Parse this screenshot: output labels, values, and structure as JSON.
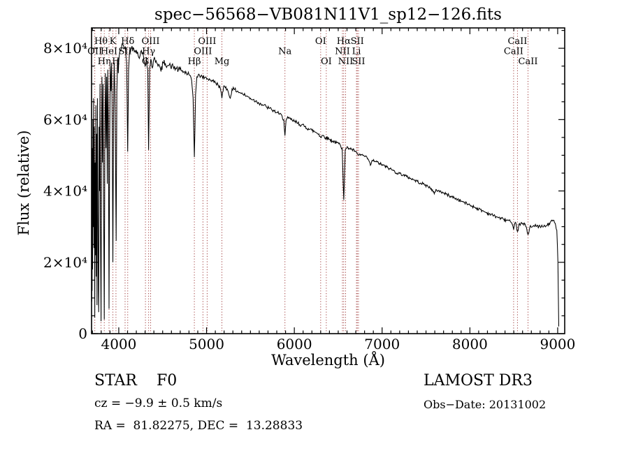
{
  "title": "spec−56568−VB081N11V1_sp12−126.fits",
  "annotations": {
    "object_class": "STAR    F0",
    "cz": "cz = −9.9 ± 0.5 km/s",
    "radec": "RA =  81.82275, DEC =  13.28833",
    "survey": "LAMOST DR3",
    "obs_date": "Obs−Date: 20131002"
  },
  "colors": {
    "background": "#ffffff",
    "axes": "#000000",
    "spectrum": "#000000",
    "line_marker": "#a03c3c",
    "text": "#000000"
  },
  "chart_data": {
    "type": "line",
    "title": "spec−56568−VB081N11V1_sp12−126.fits",
    "xlabel": "Wavelength (Å)",
    "ylabel": "Flux (relative)",
    "xlim": [
      3690,
      9080
    ],
    "ylim": [
      0,
      85700
    ],
    "grid": false,
    "legend": "none",
    "x_ticks": [
      {
        "value": 4000,
        "label": "4000"
      },
      {
        "value": 5000,
        "label": "5000"
      },
      {
        "value": 6000,
        "label": "6000"
      },
      {
        "value": 7000,
        "label": "7000"
      },
      {
        "value": 8000,
        "label": "8000"
      },
      {
        "value": 9000,
        "label": "9000"
      }
    ],
    "x_minor_step": 100,
    "y_ticks": [
      {
        "value": 0,
        "label": "0"
      },
      {
        "value": 20000,
        "label": "2×10⁴"
      },
      {
        "value": 40000,
        "label": "4×10⁴"
      },
      {
        "value": 60000,
        "label": "6×10⁴"
      },
      {
        "value": 80000,
        "label": "8×10⁴"
      }
    ],
    "y_minor_step": 5000,
    "spectral_lines": [
      {
        "wavelength": 3727,
        "label": "OII",
        "row": 2
      },
      {
        "wavelength": 3798,
        "label": "Hθ",
        "row": 1
      },
      {
        "wavelength": 3835,
        "label": "Hη",
        "row": 3
      },
      {
        "wavelength": 3889,
        "label": "HeI",
        "row": 2
      },
      {
        "wavelength": 3933,
        "label": "K",
        "row": 1
      },
      {
        "wavelength": 3968,
        "label": "H",
        "row": 3
      },
      {
        "wavelength": 4072,
        "label": "SII",
        "row": 2
      },
      {
        "wavelength": 4102,
        "label": "Hδ",
        "row": 1
      },
      {
        "wavelength": 4304,
        "label": "G",
        "row": 3
      },
      {
        "wavelength": 4340,
        "label": "Hγ",
        "row": 2
      },
      {
        "wavelength": 4363,
        "label": "OIII",
        "row": 1
      },
      {
        "wavelength": 4861,
        "label": "Hβ",
        "row": 3
      },
      {
        "wavelength": 4959,
        "label": "OIII",
        "row": 2
      },
      {
        "wavelength": 5007,
        "label": "OIII",
        "row": 1
      },
      {
        "wavelength": 5175,
        "label": "Mg",
        "row": 3
      },
      {
        "wavelength": 5893,
        "label": "Na",
        "row": 2
      },
      {
        "wavelength": 6300,
        "label": "OI",
        "row": 1
      },
      {
        "wavelength": 6364,
        "label": "OI",
        "row": 3
      },
      {
        "wavelength": 6548,
        "label": "NII",
        "row": 2
      },
      {
        "wavelength": 6563,
        "label": "Hα",
        "row": 1
      },
      {
        "wavelength": 6584,
        "label": "NII",
        "row": 3
      },
      {
        "wavelength": 6708,
        "label": "Li",
        "row": 2
      },
      {
        "wavelength": 6717,
        "label": "SII",
        "row": 1
      },
      {
        "wavelength": 6731,
        "label": "SII",
        "row": 3
      },
      {
        "wavelength": 8498,
        "label": "CaII",
        "row": 2
      },
      {
        "wavelength": 8542,
        "label": "CaII",
        "row": 1
      },
      {
        "wavelength": 8662,
        "label": "CaII",
        "row": 3
      }
    ],
    "series": [
      {
        "name": "spectrum",
        "color": "#000000",
        "points": [
          [
            3692,
            9000
          ],
          [
            3694,
            38000
          ],
          [
            3696,
            12000
          ],
          [
            3699,
            52000
          ],
          [
            3702,
            18000
          ],
          [
            3705,
            60000
          ],
          [
            3709,
            30000
          ],
          [
            3713,
            66000
          ],
          [
            3717,
            24000
          ],
          [
            3721,
            58000
          ],
          [
            3727,
            4500
          ],
          [
            3731,
            48000
          ],
          [
            3735,
            22000
          ],
          [
            3739,
            64000
          ],
          [
            3744,
            16000
          ],
          [
            3748,
            56000
          ],
          [
            3752,
            8000
          ],
          [
            3757,
            66000
          ],
          [
            3762,
            34000
          ],
          [
            3767,
            12000
          ],
          [
            3771,
            6000
          ],
          [
            3776,
            58000
          ],
          [
            3781,
            40000
          ],
          [
            3786,
            70000
          ],
          [
            3791,
            30000
          ],
          [
            3798,
            3500
          ],
          [
            3804,
            55000
          ],
          [
            3809,
            72000
          ],
          [
            3815,
            48000
          ],
          [
            3821,
            70000
          ],
          [
            3827,
            38000
          ],
          [
            3835,
            4000
          ],
          [
            3842,
            58000
          ],
          [
            3848,
            73000
          ],
          [
            3855,
            52000
          ],
          [
            3862,
            72000
          ],
          [
            3869,
            42000
          ],
          [
            3875,
            74000
          ],
          [
            3882,
            58000
          ],
          [
            3889,
            7000
          ],
          [
            3896,
            52000
          ],
          [
            3903,
            75000
          ],
          [
            3911,
            68000
          ],
          [
            3918,
            76000
          ],
          [
            3926,
            58000
          ],
          [
            3933,
            20000
          ],
          [
            3941,
            62000
          ],
          [
            3948,
            76000
          ],
          [
            3955,
            68000
          ],
          [
            3962,
            52000
          ],
          [
            3970,
            26000
          ],
          [
            3978,
            68000
          ],
          [
            3986,
            77000
          ],
          [
            3995,
            73000
          ],
          [
            4005,
            78000
          ],
          [
            4015,
            79500
          ],
          [
            4030,
            80000
          ],
          [
            4045,
            81000
          ],
          [
            4060,
            80000
          ],
          [
            4075,
            80500
          ],
          [
            4090,
            76000
          ],
          [
            4102,
            51000
          ],
          [
            4112,
            74000
          ],
          [
            4125,
            79500
          ],
          [
            4145,
            80000
          ],
          [
            4170,
            80000
          ],
          [
            4200,
            79500
          ],
          [
            4227,
            77500
          ],
          [
            4250,
            79000
          ],
          [
            4280,
            78000
          ],
          [
            4300,
            75000
          ],
          [
            4315,
            77500
          ],
          [
            4330,
            74000
          ],
          [
            4340,
            51500
          ],
          [
            4352,
            74500
          ],
          [
            4365,
            77000
          ],
          [
            4383,
            74500
          ],
          [
            4400,
            77000
          ],
          [
            4425,
            76500
          ],
          [
            4455,
            75500
          ],
          [
            4481,
            73500
          ],
          [
            4505,
            76000
          ],
          [
            4530,
            75800
          ],
          [
            4560,
            75200
          ],
          [
            4590,
            75000
          ],
          [
            4620,
            74800
          ],
          [
            4650,
            74400
          ],
          [
            4680,
            74000
          ],
          [
            4710,
            73800
          ],
          [
            4740,
            73400
          ],
          [
            4770,
            73000
          ],
          [
            4800,
            72600
          ],
          [
            4830,
            71000
          ],
          [
            4847,
            66000
          ],
          [
            4861,
            49500
          ],
          [
            4875,
            67000
          ],
          [
            4890,
            72000
          ],
          [
            4920,
            72400
          ],
          [
            4950,
            72000
          ],
          [
            4980,
            71800
          ],
          [
            5010,
            71500
          ],
          [
            5040,
            71200
          ],
          [
            5070,
            70800
          ],
          [
            5100,
            70400
          ],
          [
            5130,
            69800
          ],
          [
            5155,
            69000
          ],
          [
            5175,
            66000
          ],
          [
            5195,
            69400
          ],
          [
            5220,
            69200
          ],
          [
            5250,
            67500
          ],
          [
            5270,
            66000
          ],
          [
            5290,
            68600
          ],
          [
            5320,
            68400
          ],
          [
            5350,
            68000
          ],
          [
            5380,
            67600
          ],
          [
            5410,
            67200
          ],
          [
            5440,
            66800
          ],
          [
            5470,
            66400
          ],
          [
            5500,
            66000
          ],
          [
            5530,
            65600
          ],
          [
            5560,
            65200
          ],
          [
            5590,
            64800
          ],
          [
            5620,
            64400
          ],
          [
            5650,
            64000
          ],
          [
            5680,
            63600
          ],
          [
            5710,
            63200
          ],
          [
            5740,
            62800
          ],
          [
            5770,
            62400
          ],
          [
            5800,
            62000
          ],
          [
            5830,
            61500
          ],
          [
            5860,
            61000
          ],
          [
            5880,
            60000
          ],
          [
            5893,
            55500
          ],
          [
            5906,
            59800
          ],
          [
            5930,
            60400
          ],
          [
            5960,
            60000
          ],
          [
            6000,
            59500
          ],
          [
            6040,
            59000
          ],
          [
            6080,
            58500
          ],
          [
            6120,
            58000
          ],
          [
            6160,
            57500
          ],
          [
            6200,
            57000
          ],
          [
            6240,
            56500
          ],
          [
            6280,
            56000
          ],
          [
            6300,
            55000
          ],
          [
            6320,
            55600
          ],
          [
            6360,
            55000
          ],
          [
            6400,
            54500
          ],
          [
            6440,
            54000
          ],
          [
            6480,
            53500
          ],
          [
            6520,
            53000
          ],
          [
            6545,
            52000
          ],
          [
            6563,
            37500
          ],
          [
            6580,
            51500
          ],
          [
            6610,
            52200
          ],
          [
            6650,
            51700
          ],
          [
            6690,
            51200
          ],
          [
            6717,
            50300
          ],
          [
            6731,
            50000
          ],
          [
            6760,
            50200
          ],
          [
            6800,
            49700
          ],
          [
            6840,
            49000
          ],
          [
            6867,
            47200
          ],
          [
            6890,
            48600
          ],
          [
            6930,
            48200
          ],
          [
            6970,
            47700
          ],
          [
            7010,
            47200
          ],
          [
            7050,
            46700
          ],
          [
            7090,
            46200
          ],
          [
            7130,
            45700
          ],
          [
            7170,
            45000
          ],
          [
            7200,
            44900
          ],
          [
            7240,
            44500
          ],
          [
            7280,
            44000
          ],
          [
            7320,
            43600
          ],
          [
            7360,
            43100
          ],
          [
            7400,
            42700
          ],
          [
            7440,
            42200
          ],
          [
            7480,
            41800
          ],
          [
            7520,
            41300
          ],
          [
            7560,
            40700
          ],
          [
            7594,
            39200
          ],
          [
            7620,
            40300
          ],
          [
            7660,
            39900
          ],
          [
            7700,
            39400
          ],
          [
            7740,
            39000
          ],
          [
            7780,
            38500
          ],
          [
            7820,
            38100
          ],
          [
            7860,
            37600
          ],
          [
            7900,
            37200
          ],
          [
            7940,
            36700
          ],
          [
            7980,
            36300
          ],
          [
            8020,
            35800
          ],
          [
            8060,
            35400
          ],
          [
            8100,
            34900
          ],
          [
            8140,
            34500
          ],
          [
            8180,
            34000
          ],
          [
            8220,
            33600
          ],
          [
            8260,
            33200
          ],
          [
            8300,
            32800
          ],
          [
            8340,
            32400
          ],
          [
            8380,
            32100
          ],
          [
            8420,
            31800
          ],
          [
            8460,
            31500
          ],
          [
            8498,
            29200
          ],
          [
            8520,
            31200
          ],
          [
            8542,
            28600
          ],
          [
            8565,
            30900
          ],
          [
            8600,
            30700
          ],
          [
            8630,
            30600
          ],
          [
            8662,
            27800
          ],
          [
            8690,
            30300
          ],
          [
            8720,
            30200
          ],
          [
            8760,
            30100
          ],
          [
            8800,
            30000
          ],
          [
            8840,
            30000
          ],
          [
            8880,
            30300
          ],
          [
            8915,
            31200
          ],
          [
            8945,
            31800
          ],
          [
            8970,
            31000
          ],
          [
            8990,
            29000
          ],
          [
            9003,
            20000
          ],
          [
            9012,
            2000
          ]
        ]
      }
    ]
  }
}
